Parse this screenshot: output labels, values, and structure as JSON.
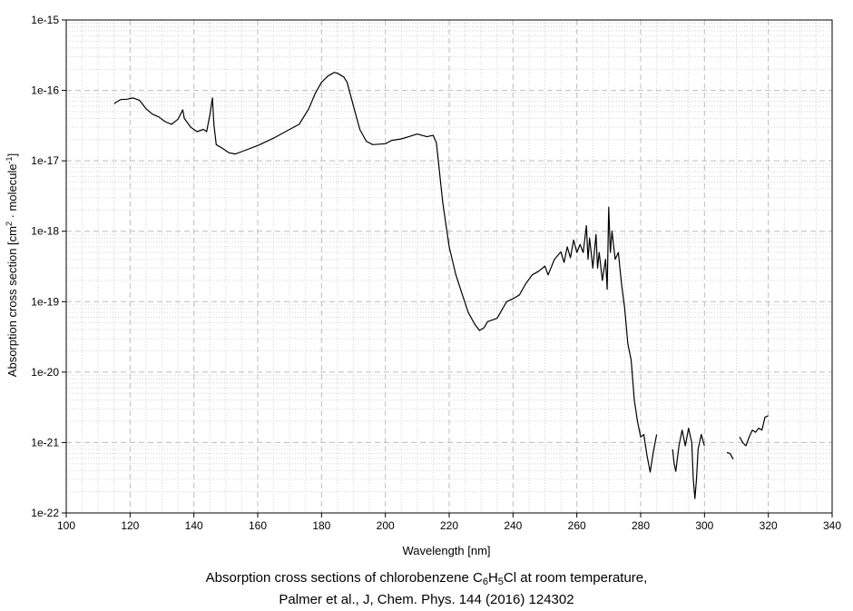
{
  "chart_data": {
    "type": "line",
    "title_line1_parts": [
      "Absorption cross sections of chlorobenzene C",
      "6",
      "H",
      "5",
      "Cl at room temperature,"
    ],
    "title_line2": "Palmer et al., J, Chem. Phys. 144 (2016) 124302",
    "xlabel": "Wavelength [nm]",
    "ylabel_parts": [
      "Absorption cross section [cm",
      "2",
      " · molecule",
      "-1",
      "]"
    ],
    "xlim": [
      100,
      340
    ],
    "ylim_log10": [
      -22,
      -15
    ],
    "y_scale": "log",
    "grid": true,
    "x_ticks": [
      100,
      120,
      140,
      160,
      180,
      200,
      220,
      240,
      260,
      280,
      300,
      320,
      340
    ],
    "y_tick_labels": [
      "1e-22",
      "1e-21",
      "1e-20",
      "1e-19",
      "1e-18",
      "1e-17",
      "1e-16",
      "1e-15"
    ],
    "series": [
      {
        "segments": [
          [
            [
              115,
              6.5e-17
            ],
            [
              117,
              7.4e-17
            ],
            [
              119,
              7.5e-17
            ],
            [
              121,
              7.8e-17
            ],
            [
              123,
              7.2e-17
            ],
            [
              125,
              5.5e-17
            ],
            [
              127,
              4.6e-17
            ],
            [
              129,
              4.2e-17
            ],
            [
              131,
              3.6e-17
            ],
            [
              133,
              3.3e-17
            ],
            [
              135,
              3.9e-17
            ],
            [
              136.5,
              5.3e-17
            ],
            [
              137,
              4e-17
            ],
            [
              139,
              3e-17
            ],
            [
              141,
              2.6e-17
            ],
            [
              143,
              2.8e-17
            ],
            [
              144,
              2.6e-17
            ],
            [
              145,
              4.5e-17
            ],
            [
              145.8,
              7.8e-17
            ],
            [
              146.3,
              3.2e-17
            ],
            [
              147,
              1.7e-17
            ],
            [
              149,
              1.5e-17
            ],
            [
              151,
              1.3e-17
            ],
            [
              153,
              1.25e-17
            ],
            [
              155,
              1.35e-17
            ],
            [
              160,
              1.65e-17
            ],
            [
              165,
              2.1e-17
            ],
            [
              170,
              2.8e-17
            ],
            [
              173,
              3.3e-17
            ],
            [
              176,
              5.5e-17
            ],
            [
              178,
              9e-17
            ],
            [
              180,
              1.3e-16
            ],
            [
              182,
              1.6e-16
            ],
            [
              184,
              1.8e-16
            ],
            [
              185,
              1.75e-16
            ],
            [
              187,
              1.55e-16
            ],
            [
              188,
              1.3e-16
            ],
            [
              190,
              6e-17
            ],
            [
              192,
              2.8e-17
            ],
            [
              194,
              1.9e-17
            ],
            [
              196,
              1.7e-17
            ],
            [
              200,
              1.75e-17
            ],
            [
              202,
              1.95e-17
            ],
            [
              205,
              2.05e-17
            ],
            [
              208,
              2.25e-17
            ],
            [
              210,
              2.4e-17
            ],
            [
              213,
              2.2e-17
            ],
            [
              215,
              2.3e-17
            ],
            [
              216,
              1.8e-17
            ],
            [
              218,
              2.5e-18
            ],
            [
              220,
              6e-19
            ],
            [
              222,
              2.5e-19
            ],
            [
              224,
              1.3e-19
            ],
            [
              226,
              7e-20
            ],
            [
              228,
              4.8e-20
            ],
            [
              229.5,
              3.9e-20
            ],
            [
              231,
              4.3e-20
            ],
            [
              232,
              5.2e-20
            ],
            [
              235,
              5.8e-20
            ],
            [
              238,
              1e-19
            ],
            [
              240,
              1.1e-19
            ],
            [
              242,
              1.25e-19
            ],
            [
              244,
              1.8e-19
            ],
            [
              246,
              2.4e-19
            ],
            [
              248,
              2.7e-19
            ],
            [
              250,
              3.2e-19
            ],
            [
              251,
              2.4e-19
            ],
            [
              253,
              4e-19
            ],
            [
              255,
              5.1e-19
            ],
            [
              256,
              3.6e-19
            ],
            [
              257,
              6e-19
            ],
            [
              258,
              4.2e-19
            ],
            [
              259,
              7.5e-19
            ],
            [
              260,
              5e-19
            ],
            [
              261,
              6.5e-19
            ],
            [
              262,
              5e-19
            ],
            [
              263,
              1.2e-18
            ],
            [
              263.5,
              4e-19
            ],
            [
              264,
              8e-19
            ],
            [
              265,
              3e-19
            ],
            [
              266,
              9e-19
            ],
            [
              266.5,
              3e-19
            ],
            [
              267,
              5e-19
            ],
            [
              268,
              2e-19
            ],
            [
              269,
              4e-19
            ],
            [
              269.5,
              1.5e-19
            ],
            [
              270,
              2.2e-18
            ],
            [
              270.5,
              5e-19
            ],
            [
              271,
              1e-18
            ],
            [
              272,
              4e-19
            ],
            [
              273,
              5e-19
            ],
            [
              274,
              1.8e-19
            ],
            [
              275,
              8e-20
            ],
            [
              276,
              2.5e-20
            ],
            [
              277,
              1.5e-20
            ],
            [
              278,
              4e-21
            ],
            [
              279,
              2e-21
            ],
            [
              280,
              1.2e-21
            ],
            [
              281,
              1.3e-21
            ],
            [
              282,
              6.5e-22
            ],
            [
              283,
              3.8e-22
            ],
            [
              284,
              7.5e-22
            ],
            [
              285,
              1.3e-21
            ]
          ],
          [
            [
              290,
              8e-22
            ],
            [
              290.5,
              5e-22
            ],
            [
              291,
              3.9e-22
            ],
            [
              292,
              9e-22
            ],
            [
              293,
              1.5e-21
            ],
            [
              294,
              9e-22
            ],
            [
              295,
              1.6e-21
            ],
            [
              296,
              1e-21
            ],
            [
              296.5,
              3e-22
            ],
            [
              297,
              1.6e-22
            ],
            [
              297.5,
              3e-22
            ],
            [
              298,
              8e-22
            ],
            [
              299,
              1.3e-21
            ],
            [
              300,
              9e-22
            ]
          ],
          [
            [
              307,
              7.2e-22
            ],
            [
              308,
              7e-22
            ],
            [
              309,
              5.8e-22
            ]
          ],
          [
            [
              311,
              1.2e-21
            ],
            [
              312,
              1e-21
            ],
            [
              313,
              9e-22
            ],
            [
              314,
              1.2e-21
            ],
            [
              315,
              1.5e-21
            ],
            [
              316,
              1.4e-21
            ],
            [
              317,
              1.6e-21
            ],
            [
              318,
              1.5e-21
            ],
            [
              319,
              2.3e-21
            ],
            [
              320,
              2.4e-21
            ]
          ]
        ]
      }
    ]
  }
}
